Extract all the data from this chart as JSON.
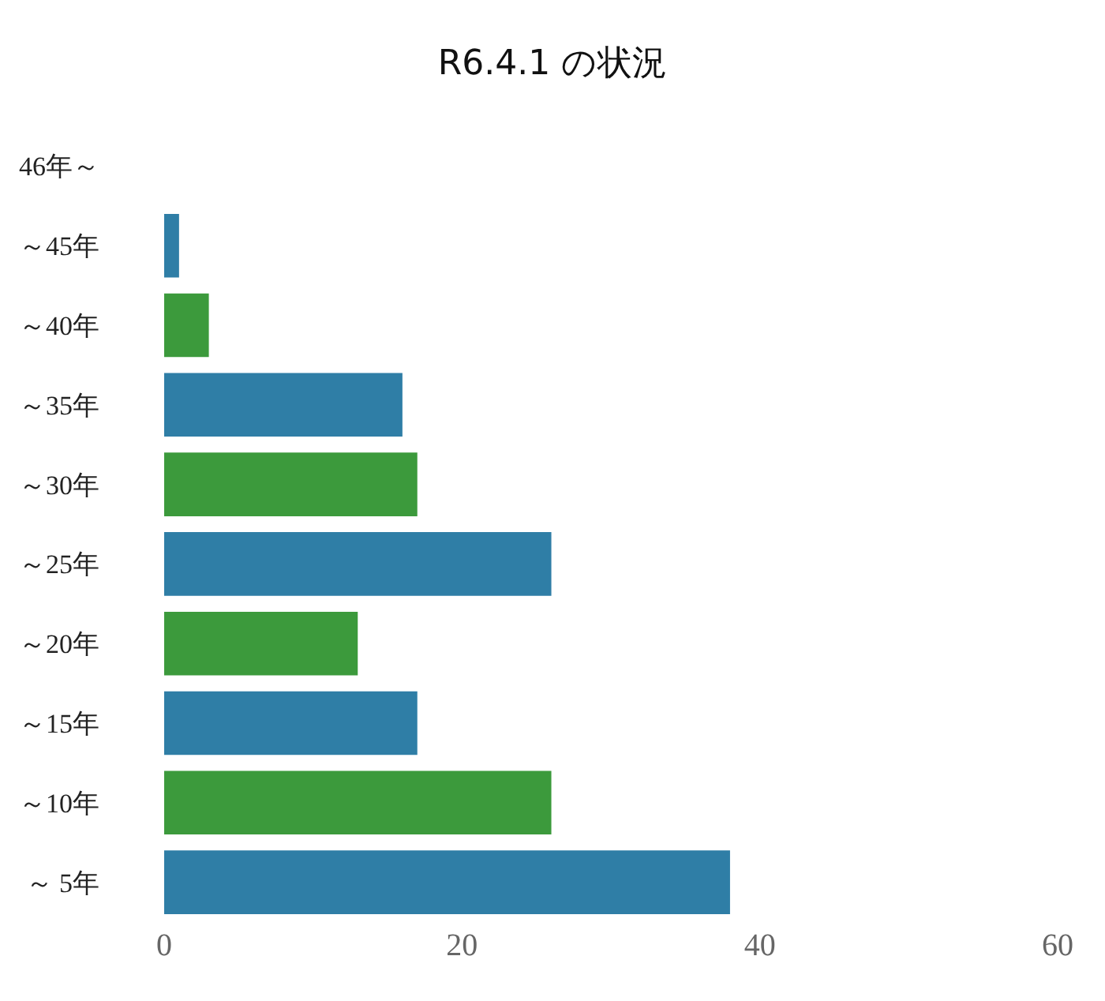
{
  "chart_data": {
    "type": "bar",
    "orientation": "horizontal",
    "title": "R6.4.1 の状況",
    "categories": [
      "46年～",
      "～45年",
      "～40年",
      "～35年",
      "～30年",
      "～25年",
      "～20年",
      "～15年",
      "～10年",
      "～ 5年"
    ],
    "values": [
      0,
      1,
      3,
      16,
      17,
      26,
      13,
      17,
      26,
      38
    ],
    "colors": [
      "#2f7ea6",
      "#2f7ea6",
      "#3c9a3c",
      "#2f7ea6",
      "#3c9a3c",
      "#2f7ea6",
      "#3c9a3c",
      "#2f7ea6",
      "#3c9a3c",
      "#2f7ea6"
    ],
    "xlim": [
      0,
      60
    ],
    "xticks": [
      0,
      20,
      40,
      60
    ],
    "legend": false
  }
}
